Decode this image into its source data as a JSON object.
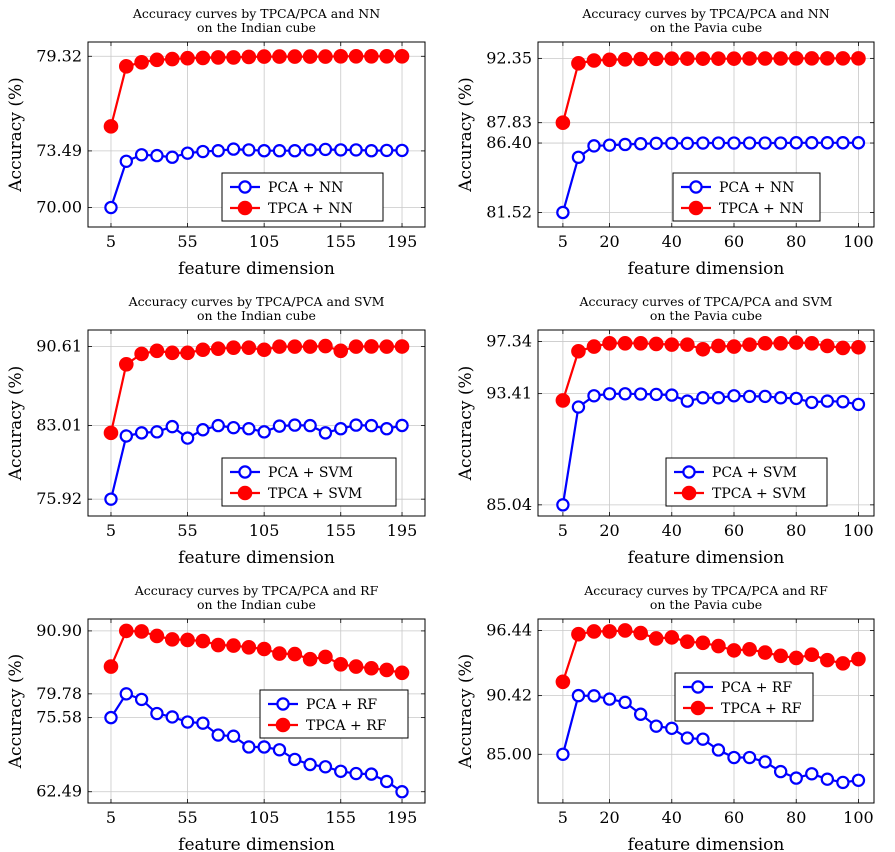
{
  "chart_data": [
    {
      "type": "line",
      "title": "Accuracy curves by TPCA/PCA and NN",
      "subtitle": "on the Indian cube",
      "xlabel": "feature dimension",
      "ylabel": "Accuracy (%)",
      "xlim": [
        -10,
        210
      ],
      "ylim": [
        68.8,
        80.2
      ],
      "xticks": [
        5,
        55,
        105,
        155,
        195
      ],
      "xtick_labels": [
        "5",
        "55",
        "105",
        "155",
        "195"
      ],
      "yticks": [
        70.0,
        73.49,
        79.32
      ],
      "ytick_labels": [
        "70.00",
        "73.49",
        "79.32"
      ],
      "grid": true,
      "legend": "bottom-right",
      "x": [
        5,
        15,
        25,
        35,
        45,
        55,
        65,
        75,
        85,
        95,
        105,
        115,
        125,
        135,
        145,
        155,
        165,
        175,
        185,
        195
      ],
      "series": [
        {
          "name": "PCA + NN",
          "color": "#0000ff",
          "marker": "open-circle",
          "values": [
            70.0,
            72.85,
            73.25,
            73.2,
            73.1,
            73.35,
            73.45,
            73.5,
            73.6,
            73.55,
            73.5,
            73.5,
            73.5,
            73.55,
            73.58,
            73.55,
            73.55,
            73.5,
            73.52,
            73.52
          ]
        },
        {
          "name": "TPCA + NN",
          "color": "#ff0000",
          "marker": "filled-circle",
          "values": [
            75.0,
            78.7,
            78.95,
            79.1,
            79.15,
            79.2,
            79.22,
            79.25,
            79.25,
            79.28,
            79.3,
            79.3,
            79.3,
            79.3,
            79.3,
            79.32,
            79.32,
            79.32,
            79.32,
            79.32
          ]
        }
      ]
    },
    {
      "type": "line",
      "title": "Accuracy curves by TPCA/PCA and NN",
      "subtitle": "on the Pavia cube",
      "xlabel": "feature dimension",
      "ylabel": "Accuracy (%)",
      "xlim": [
        -3,
        105
      ],
      "ylim": [
        80.5,
        93.5
      ],
      "xticks": [
        5,
        20,
        40,
        60,
        80,
        100
      ],
      "xtick_labels": [
        "5",
        "20",
        "40",
        "60",
        "80",
        "100"
      ],
      "yticks": [
        81.52,
        86.4,
        87.83,
        92.35
      ],
      "ytick_labels": [
        "81.52",
        "86.40",
        "87.83",
        "92.35"
      ],
      "grid": true,
      "legend": "bottom-right",
      "x": [
        5,
        10,
        15,
        20,
        25,
        30,
        35,
        40,
        45,
        50,
        55,
        60,
        65,
        70,
        75,
        80,
        85,
        90,
        95,
        100
      ],
      "series": [
        {
          "name": "PCA + NN",
          "color": "#0000ff",
          "marker": "open-circle",
          "values": [
            81.52,
            85.4,
            86.2,
            86.25,
            86.3,
            86.35,
            86.38,
            86.38,
            86.38,
            86.4,
            86.4,
            86.4,
            86.4,
            86.4,
            86.4,
            86.42,
            86.42,
            86.42,
            86.42,
            86.42
          ]
        },
        {
          "name": "TPCA + NN",
          "color": "#ff0000",
          "marker": "filled-circle",
          "values": [
            87.83,
            92.0,
            92.2,
            92.25,
            92.28,
            92.3,
            92.32,
            92.33,
            92.33,
            92.33,
            92.33,
            92.33,
            92.34,
            92.34,
            92.34,
            92.35,
            92.35,
            92.35,
            92.35,
            92.35
          ]
        }
      ]
    },
    {
      "type": "line",
      "title": "Accuracy curves by TPCA/PCA and SVM",
      "subtitle": "on the Indian cube",
      "xlabel": "feature dimension",
      "ylabel": "Accuracy (%)",
      "xlim": [
        -10,
        210
      ],
      "ylim": [
        74.3,
        92.2
      ],
      "xticks": [
        5,
        55,
        105,
        155,
        195
      ],
      "xtick_labels": [
        "5",
        "55",
        "105",
        "155",
        "195"
      ],
      "yticks": [
        75.92,
        83.01,
        90.61
      ],
      "ytick_labels": [
        "75.92",
        "83.01",
        "90.61"
      ],
      "grid": true,
      "legend": "bottom-right",
      "x": [
        5,
        15,
        25,
        35,
        45,
        55,
        65,
        75,
        85,
        95,
        105,
        115,
        125,
        135,
        145,
        155,
        165,
        175,
        185,
        195
      ],
      "series": [
        {
          "name": "PCA + SVM",
          "color": "#0000ff",
          "marker": "open-circle",
          "values": [
            75.92,
            82.0,
            82.3,
            82.4,
            82.9,
            81.8,
            82.6,
            83.0,
            82.8,
            82.7,
            82.4,
            82.95,
            83.05,
            83.0,
            82.3,
            82.7,
            83.05,
            83.0,
            82.7,
            83.01
          ]
        },
        {
          "name": "TPCA + SVM",
          "color": "#ff0000",
          "marker": "filled-circle",
          "values": [
            82.3,
            88.9,
            89.9,
            90.2,
            90.0,
            90.0,
            90.3,
            90.4,
            90.5,
            90.5,
            90.3,
            90.6,
            90.6,
            90.6,
            90.65,
            90.2,
            90.6,
            90.62,
            90.6,
            90.61
          ]
        }
      ]
    },
    {
      "type": "line",
      "title": "Accuracy curves of TPCA/PCA and SVM",
      "subtitle": "on the Pavia cube",
      "xlabel": "feature dimension",
      "ylabel": "Accuracy (%)",
      "xlim": [
        -3,
        105
      ],
      "ylim": [
        84.2,
        98.2
      ],
      "xticks": [
        5,
        20,
        40,
        60,
        80,
        100
      ],
      "xtick_labels": [
        "5",
        "20",
        "40",
        "60",
        "80",
        "100"
      ],
      "yticks": [
        85.04,
        93.41,
        97.34
      ],
      "ytick_labels": [
        "85.04",
        "93.41",
        "97.34"
      ],
      "grid": true,
      "legend": "bottom-right",
      "x": [
        5,
        10,
        15,
        20,
        25,
        30,
        35,
        40,
        45,
        50,
        55,
        60,
        65,
        70,
        75,
        80,
        85,
        90,
        95,
        100
      ],
      "series": [
        {
          "name": "PCA + SVM",
          "color": "#0000ff",
          "marker": "open-circle",
          "values": [
            85.04,
            92.4,
            93.25,
            93.4,
            93.4,
            93.38,
            93.35,
            93.3,
            92.85,
            93.1,
            93.1,
            93.25,
            93.2,
            93.2,
            93.1,
            93.05,
            92.75,
            92.85,
            92.8,
            92.6
          ]
        },
        {
          "name": "TPCA + SVM",
          "color": "#ff0000",
          "marker": "filled-circle",
          "values": [
            92.9,
            96.6,
            96.95,
            97.2,
            97.2,
            97.2,
            97.15,
            97.1,
            97.1,
            96.75,
            97.0,
            96.95,
            97.1,
            97.2,
            97.2,
            97.25,
            97.2,
            97.0,
            96.85,
            96.9
          ]
        }
      ]
    },
    {
      "type": "line",
      "title": "Accuracy curves by TPCA/PCA and RF",
      "subtitle": "on the Indian cube",
      "xlabel": "feature dimension",
      "ylabel": "Accuracy (%)",
      "xlim": [
        -10,
        210
      ],
      "ylim": [
        60.5,
        93.0
      ],
      "xticks": [
        5,
        55,
        105,
        155,
        195
      ],
      "xtick_labels": [
        "5",
        "55",
        "105",
        "155",
        "195"
      ],
      "yticks": [
        62.49,
        75.58,
        79.78,
        90.9
      ],
      "ytick_labels": [
        "62.49",
        "75.58",
        "79.78",
        "90.90"
      ],
      "grid": true,
      "legend": "right",
      "x": [
        5,
        15,
        25,
        35,
        45,
        55,
        65,
        75,
        85,
        95,
        105,
        115,
        125,
        135,
        145,
        155,
        165,
        175,
        185,
        195
      ],
      "series": [
        {
          "name": "PCA + RF",
          "color": "#0000ff",
          "marker": "open-circle",
          "values": [
            75.58,
            79.78,
            78.8,
            76.3,
            75.7,
            74.8,
            74.6,
            72.5,
            72.3,
            70.4,
            70.4,
            69.9,
            68.2,
            67.3,
            66.9,
            66.1,
            65.7,
            65.6,
            64.3,
            62.49
          ]
        },
        {
          "name": "TPCA + RF",
          "color": "#ff0000",
          "marker": "filled-circle",
          "values": [
            84.6,
            90.9,
            90.8,
            90.0,
            89.4,
            89.3,
            89.1,
            88.4,
            88.3,
            88.0,
            87.7,
            86.9,
            86.8,
            85.9,
            86.3,
            85.0,
            84.6,
            84.3,
            84.0,
            83.5
          ]
        }
      ]
    },
    {
      "type": "line",
      "title": "Accuracy curves by TPCA/PCA and RF",
      "subtitle": "on the Pavia cube",
      "xlabel": "feature dimension",
      "ylabel": "Accuracy (%)",
      "xlim": [
        -3,
        105
      ],
      "ylim": [
        80.5,
        97.5
      ],
      "xticks": [
        5,
        20,
        40,
        60,
        80,
        100
      ],
      "xtick_labels": [
        "5",
        "20",
        "40",
        "60",
        "80",
        "100"
      ],
      "yticks": [
        85.0,
        90.42,
        96.44
      ],
      "ytick_labels": [
        "85.00",
        "90.42",
        "96.44"
      ],
      "grid": true,
      "legend": "right",
      "x": [
        5,
        10,
        15,
        20,
        25,
        30,
        35,
        40,
        45,
        50,
        55,
        60,
        65,
        70,
        75,
        80,
        85,
        90,
        95,
        100
      ],
      "series": [
        {
          "name": "PCA + RF",
          "color": "#0000ff",
          "marker": "open-circle",
          "values": [
            85.0,
            90.42,
            90.4,
            90.1,
            89.8,
            88.7,
            87.6,
            87.4,
            86.5,
            86.4,
            85.4,
            84.7,
            84.7,
            84.3,
            83.4,
            82.8,
            83.2,
            82.7,
            82.4,
            82.6
          ]
        },
        {
          "name": "TPCA + RF",
          "color": "#ff0000",
          "marker": "filled-circle",
          "values": [
            91.7,
            96.1,
            96.35,
            96.35,
            96.44,
            96.2,
            95.7,
            95.8,
            95.4,
            95.3,
            95.0,
            94.6,
            94.7,
            94.4,
            94.1,
            93.9,
            94.2,
            93.7,
            93.4,
            93.8
          ]
        }
      ]
    }
  ]
}
